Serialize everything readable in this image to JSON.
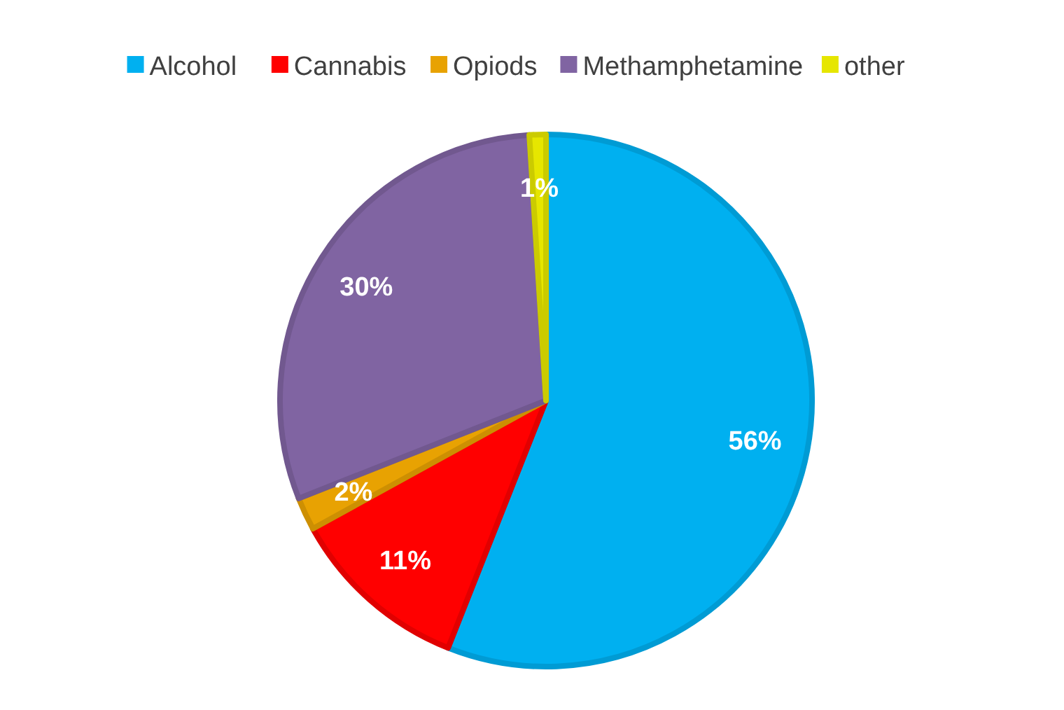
{
  "chart_data": {
    "type": "pie",
    "categories": [
      "Alcohol",
      "Cannabis",
      "Opiods",
      "Methamphetamine",
      "other"
    ],
    "values": [
      56,
      11,
      2,
      30,
      1
    ],
    "colors": [
      "#00b0f0",
      "#ff0000",
      "#e8a202",
      "#8064a2",
      "#e6e600"
    ],
    "value_labels": [
      "56%",
      "11%",
      "2%",
      "30%",
      "1%"
    ],
    "legend": "top"
  }
}
